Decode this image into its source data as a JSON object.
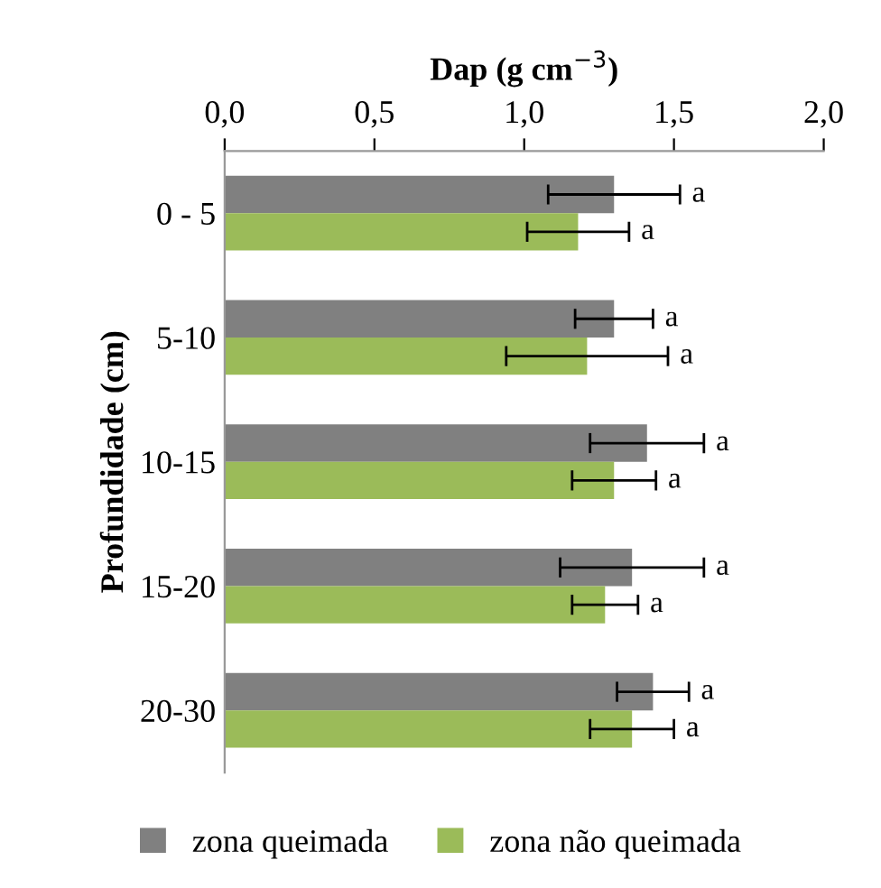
{
  "chart_data": {
    "type": "bar",
    "orientation": "horizontal",
    "xlabel": "Dap (g cm$^{−3}$)",
    "ylabel": "Profundidade (cm)",
    "categories": [
      "0 - 5",
      "5-10",
      "10-15",
      "15-20",
      "20-30"
    ],
    "series": [
      {
        "name": "zona queimada",
        "color": "#808080",
        "values": [
          1.3,
          1.3,
          1.41,
          1.36,
          1.43
        ],
        "errors": [
          0.22,
          0.13,
          0.19,
          0.24,
          0.12
        ],
        "value_labels": [
          "a",
          "a",
          "a",
          "a",
          "a"
        ]
      },
      {
        "name": "zona não queimada",
        "color": "#9bbb59",
        "values": [
          1.18,
          1.21,
          1.3,
          1.27,
          1.36
        ],
        "errors": [
          0.17,
          0.27,
          0.14,
          0.11,
          0.14
        ],
        "value_labels": [
          "a",
          "a",
          "a",
          "a",
          "a"
        ]
      }
    ],
    "xlim": [
      0,
      2
    ],
    "xticks": [
      {
        "value": 0,
        "label": "0,0"
      },
      {
        "value": 0.5,
        "label": "0,5"
      },
      {
        "value": 1,
        "label": "1,0"
      },
      {
        "value": 1.5,
        "label": "1,5"
      },
      {
        "value": 2,
        "label": "2,0"
      }
    ],
    "grid": false,
    "legend": "bottom"
  }
}
